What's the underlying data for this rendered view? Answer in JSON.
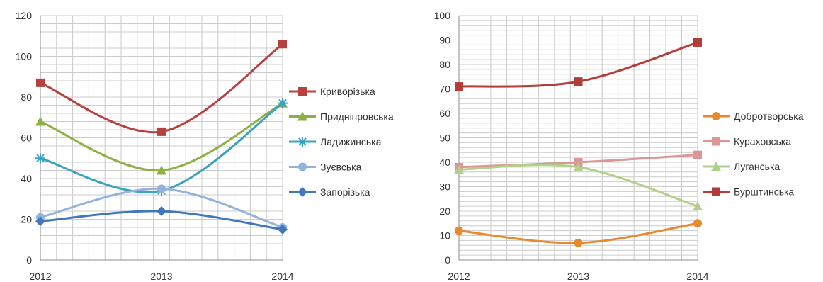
{
  "chart_data": [
    {
      "type": "line",
      "x": [
        "2012",
        "2013",
        "2014"
      ],
      "ylim": [
        0,
        120
      ],
      "yticks": [
        0,
        20,
        40,
        60,
        80,
        100,
        120
      ],
      "grid": true,
      "legend_position": "right",
      "series": [
        {
          "name": "Криворізька",
          "values": [
            87,
            63,
            106
          ],
          "color": "#b7413e",
          "marker": "square"
        },
        {
          "name": "Придніпровська",
          "values": [
            68,
            44,
            77
          ],
          "color": "#8db045",
          "marker": "triangle"
        },
        {
          "name": "Ладижинська",
          "values": [
            50,
            34,
            77
          ],
          "color": "#3aa3c0",
          "marker": "star"
        },
        {
          "name": "Зуєвська",
          "values": [
            21,
            35,
            16
          ],
          "color": "#93b3df",
          "marker": "circle"
        },
        {
          "name": "Запорізька",
          "values": [
            19,
            24,
            15
          ],
          "color": "#4277b9",
          "marker": "diamond"
        }
      ]
    },
    {
      "type": "line",
      "x": [
        "2012",
        "2013",
        "2014"
      ],
      "ylim": [
        0,
        100
      ],
      "yticks": [
        0,
        10,
        20,
        30,
        40,
        50,
        60,
        70,
        80,
        90,
        100
      ],
      "grid": true,
      "legend_position": "right",
      "series": [
        {
          "name": "Добротворська",
          "values": [
            12,
            7,
            15
          ],
          "color": "#e8892e",
          "marker": "circle"
        },
        {
          "name": "Кураховська",
          "values": [
            38,
            40,
            43
          ],
          "color": "#dc9696",
          "marker": "square"
        },
        {
          "name": "Луганська",
          "values": [
            37,
            38,
            22
          ],
          "color": "#b3d08b",
          "marker": "triangle"
        },
        {
          "name": "Бурштинська",
          "values": [
            71,
            73,
            89
          ],
          "color": "#b23c37",
          "marker": "square"
        }
      ]
    }
  ]
}
